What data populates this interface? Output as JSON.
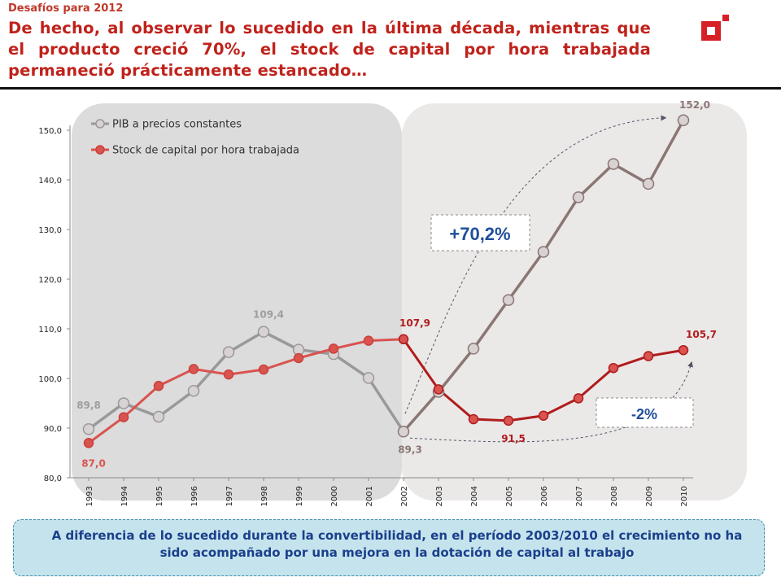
{
  "header": {
    "supertitle": "Desafíos para 2012",
    "title": "De hecho, al observar lo sucedido en la última década, mientras que el producto creció 70%, el stock de capital por hora trabajada permaneció prácticamente estancado…"
  },
  "colors": {
    "title": "#c0221b",
    "pib": "#999999",
    "stock": "#d9534f",
    "pib_after": "#8a7774",
    "stock_after": "#b01c1c",
    "annotation_text": "#1f4e9c",
    "logo": "#d61f26",
    "callout_bg": "#c4e3ec"
  },
  "chart_data": {
    "type": "line",
    "x": [
      "1993",
      "1994",
      "1995",
      "1996",
      "1997",
      "1998",
      "1999",
      "2000",
      "2001",
      "2002",
      "2003",
      "2004",
      "2005",
      "2006",
      "2007",
      "2008",
      "2009",
      "2010"
    ],
    "ylim": [
      80,
      150
    ],
    "yticks": [
      "80,0",
      "90,0",
      "100,0",
      "110,0",
      "120,0",
      "130,0",
      "140,0",
      "150,0"
    ],
    "grid": false,
    "legend_position": "top-left",
    "series": [
      {
        "name": "PIB a precios constantes",
        "values": [
          89.8,
          95.0,
          92.3,
          97.5,
          105.3,
          109.4,
          105.8,
          104.9,
          100.1,
          89.3,
          97.3,
          106.0,
          115.8,
          125.5,
          136.5,
          143.2,
          139.2,
          152.0
        ]
      },
      {
        "name": "Stock de capital por hora trabajada",
        "values": [
          87.0,
          92.2,
          98.5,
          101.9,
          100.8,
          101.8,
          104.1,
          106.0,
          107.6,
          107.9,
          97.8,
          91.8,
          91.5,
          92.5,
          96.0,
          102.1,
          104.5,
          105.7
        ]
      }
    ],
    "data_labels": [
      {
        "series": 0,
        "index": 0,
        "text": "89,8"
      },
      {
        "series": 0,
        "index": 5,
        "text": "109,4"
      },
      {
        "series": 0,
        "index": 9,
        "text": "89,3"
      },
      {
        "series": 0,
        "index": 17,
        "text": "152,0"
      },
      {
        "series": 1,
        "index": 0,
        "text": "87,0"
      },
      {
        "series": 1,
        "index": 9,
        "text": "107,9"
      },
      {
        "series": 1,
        "index": 12,
        "text": "91,5"
      },
      {
        "series": 1,
        "index": 17,
        "text": "105,7"
      }
    ],
    "annotations": {
      "growth_pib": "+70,2%",
      "growth_stock": "-2%"
    }
  },
  "footer": {
    "note": "A diferencia de lo sucedido durante la convertibilidad, en el período 2003/2010 el crecimiento no ha sido acompañado por una mejora en la dotación de capital al trabajo"
  }
}
